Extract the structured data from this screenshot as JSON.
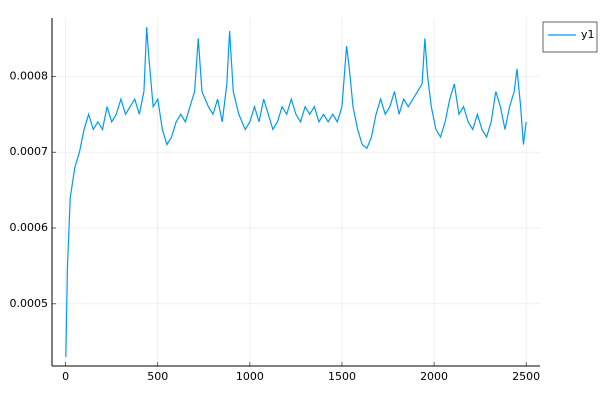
{
  "chart_data": {
    "type": "line",
    "x": [
      1,
      10,
      25,
      50,
      75,
      100,
      125,
      150,
      175,
      200,
      225,
      250,
      275,
      300,
      325,
      350,
      375,
      400,
      425,
      440,
      450,
      475,
      500,
      525,
      550,
      575,
      600,
      625,
      650,
      675,
      700,
      720,
      740,
      775,
      800,
      825,
      850,
      875,
      890,
      910,
      940,
      975,
      1000,
      1025,
      1050,
      1075,
      1100,
      1125,
      1150,
      1175,
      1200,
      1225,
      1250,
      1275,
      1300,
      1325,
      1350,
      1375,
      1400,
      1425,
      1450,
      1475,
      1500,
      1525,
      1540,
      1560,
      1585,
      1610,
      1635,
      1660,
      1685,
      1710,
      1735,
      1760,
      1785,
      1810,
      1835,
      1860,
      1885,
      1910,
      1935,
      1950,
      1965,
      1985,
      2010,
      2035,
      2060,
      2085,
      2110,
      2135,
      2160,
      2185,
      2210,
      2235,
      2260,
      2285,
      2310,
      2335,
      2360,
      2385,
      2410,
      2435,
      2450,
      2470,
      2485,
      2500
    ],
    "series": [
      {
        "name": "y1",
        "color": "#009af9",
        "values": [
          0.00043,
          0.00055,
          0.00064,
          0.00068,
          0.0007,
          0.00073,
          0.00075,
          0.00073,
          0.00074,
          0.00073,
          0.00076,
          0.00074,
          0.00075,
          0.00077,
          0.00075,
          0.00076,
          0.00077,
          0.00075,
          0.00078,
          0.000865,
          0.00083,
          0.00076,
          0.00077,
          0.00073,
          0.00071,
          0.00072,
          0.00074,
          0.00075,
          0.00074,
          0.00076,
          0.00078,
          0.00085,
          0.00078,
          0.00076,
          0.00075,
          0.00077,
          0.00074,
          0.00079,
          0.00086,
          0.00078,
          0.00075,
          0.00073,
          0.00074,
          0.00076,
          0.00074,
          0.00077,
          0.00075,
          0.00073,
          0.00074,
          0.00076,
          0.00075,
          0.00077,
          0.00075,
          0.00074,
          0.00076,
          0.00075,
          0.00076,
          0.00074,
          0.00075,
          0.00074,
          0.00075,
          0.00074,
          0.00076,
          0.00084,
          0.00081,
          0.00076,
          0.00073,
          0.00071,
          0.000705,
          0.00072,
          0.00075,
          0.00077,
          0.00075,
          0.00076,
          0.00078,
          0.00075,
          0.00077,
          0.00076,
          0.00077,
          0.00078,
          0.00079,
          0.00085,
          0.0008,
          0.00076,
          0.00073,
          0.00072,
          0.00074,
          0.00077,
          0.00079,
          0.00075,
          0.00076,
          0.00074,
          0.00073,
          0.00075,
          0.00073,
          0.00072,
          0.00074,
          0.00078,
          0.00076,
          0.00073,
          0.00076,
          0.00078,
          0.00081,
          0.00076,
          0.00071,
          0.00074
        ]
      }
    ],
    "xlim": [
      -74,
      2575
    ],
    "xticks": [
      0,
      500,
      1000,
      1500,
      2000,
      2500
    ],
    "ylim": [
      0.000418,
      0.000877
    ],
    "yticks": [
      0.0005,
      0.0006,
      0.0007,
      0.0008
    ],
    "grid": true,
    "legend": "top-right"
  }
}
